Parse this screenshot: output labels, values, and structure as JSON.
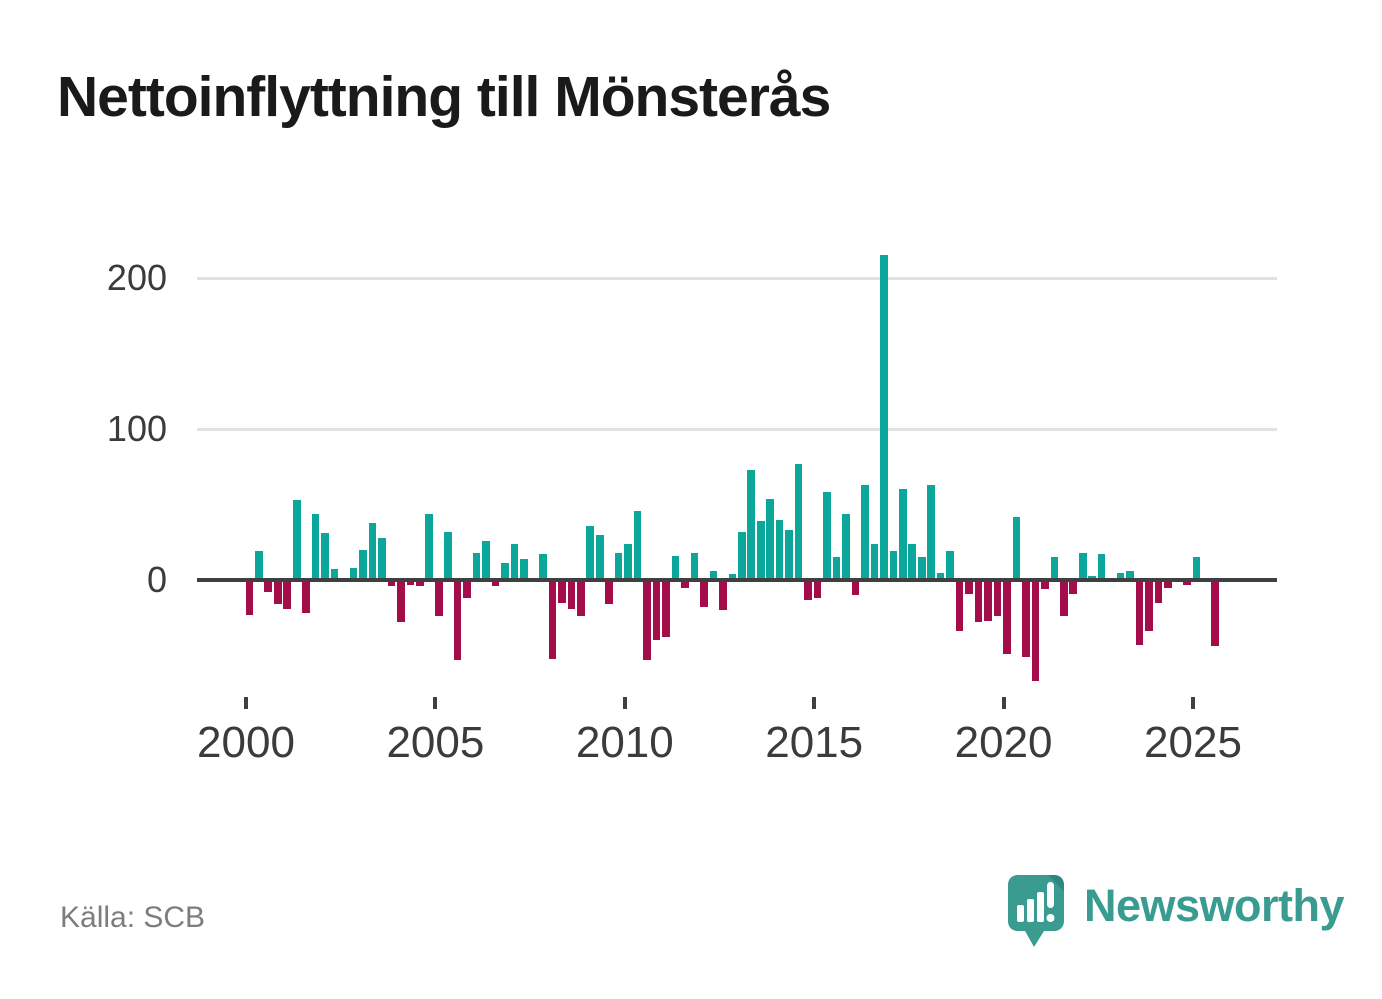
{
  "title": "Nettoinflyttning till Mönsterås",
  "footer": {
    "source": "Källa: SCB",
    "brand": "Newsworthy"
  },
  "colors": {
    "positive": "#0ba79b",
    "negative": "#a30d49",
    "brand_teal": "#3a9b91",
    "brand_teal_dark": "#2f867d",
    "grid": "#e2e2e2",
    "axis": "#3f3f3f",
    "title_text": "#1a1a1a",
    "muted_text": "#7d7d7d",
    "tick_text": "#3b3b3b"
  },
  "chart_data": {
    "type": "bar",
    "title": "Nettoinflyttning till Mönsterås",
    "xlabel": "",
    "ylabel": "",
    "y_ticks": [
      0,
      100,
      200
    ],
    "x_tick_labels": [
      "2000",
      "2005",
      "2010",
      "2015",
      "2020",
      "2025"
    ],
    "ylim": [
      -70,
      220
    ],
    "grid": "horizontal",
    "legend": "none",
    "categories": [
      "2000 Q1",
      "2000 Q2",
      "2000 Q3",
      "2000 Q4",
      "2001 Q1",
      "2001 Q2",
      "2001 Q3",
      "2001 Q4",
      "2002 Q1",
      "2002 Q2",
      "2002 Q3",
      "2002 Q4",
      "2003 Q1",
      "2003 Q2",
      "2003 Q3",
      "2003 Q4",
      "2004 Q1",
      "2004 Q2",
      "2004 Q3",
      "2004 Q4",
      "2005 Q1",
      "2005 Q2",
      "2005 Q3",
      "2005 Q4",
      "2006 Q1",
      "2006 Q2",
      "2006 Q3",
      "2006 Q4",
      "2007 Q1",
      "2007 Q2",
      "2007 Q3",
      "2007 Q4",
      "2008 Q1",
      "2008 Q2",
      "2008 Q3",
      "2008 Q4",
      "2009 Q1",
      "2009 Q2",
      "2009 Q3",
      "2009 Q4",
      "2010 Q1",
      "2010 Q2",
      "2010 Q3",
      "2010 Q4",
      "2011 Q1",
      "2011 Q2",
      "2011 Q3",
      "2011 Q4",
      "2012 Q1",
      "2012 Q2",
      "2012 Q3",
      "2012 Q4",
      "2013 Q1",
      "2013 Q2",
      "2013 Q3",
      "2013 Q4",
      "2014 Q1",
      "2014 Q2",
      "2014 Q3",
      "2014 Q4",
      "2015 Q1",
      "2015 Q2",
      "2015 Q3",
      "2015 Q4",
      "2016 Q1",
      "2016 Q2",
      "2016 Q3",
      "2016 Q4",
      "2017 Q1",
      "2017 Q2",
      "2017 Q3",
      "2017 Q4",
      "2018 Q1",
      "2018 Q2",
      "2018 Q3",
      "2018 Q4",
      "2019 Q1",
      "2019 Q2",
      "2019 Q3",
      "2019 Q4",
      "2020 Q1",
      "2020 Q2",
      "2020 Q3",
      "2020 Q4",
      "2021 Q1",
      "2021 Q2",
      "2021 Q3",
      "2021 Q4",
      "2022 Q1",
      "2022 Q2",
      "2022 Q3",
      "2022 Q4",
      "2023 Q1",
      "2023 Q2",
      "2023 Q3",
      "2023 Q4",
      "2024 Q1",
      "2024 Q2",
      "2024 Q3",
      "2024 Q4",
      "2025 Q1",
      "2025 Q2",
      "2025 Q3"
    ],
    "values": [
      -23,
      19,
      -8,
      -16,
      -19,
      53,
      -22,
      44,
      31,
      7,
      0,
      8,
      20,
      38,
      28,
      -4,
      -28,
      -3,
      -4,
      44,
      -24,
      32,
      -53,
      -12,
      18,
      26,
      -4,
      11,
      24,
      14,
      0,
      17,
      -52,
      -15,
      -19,
      -24,
      36,
      30,
      -16,
      18,
      24,
      46,
      -53,
      -40,
      -38,
      16,
      -5,
      18,
      -18,
      6,
      -20,
      4,
      32,
      73,
      39,
      54,
      40,
      33,
      77,
      -13,
      -12,
      58,
      15,
      44,
      -10,
      63,
      24,
      215,
      19,
      60,
      24,
      15,
      63,
      5,
      19,
      -34,
      -9,
      -28,
      -27,
      -24,
      -49,
      42,
      -51,
      -67,
      -6,
      15,
      -24,
      -9,
      18,
      3,
      17,
      0,
      5,
      6,
      -43,
      -34,
      -15,
      -5,
      1,
      -3,
      15,
      0,
      -44
    ]
  }
}
